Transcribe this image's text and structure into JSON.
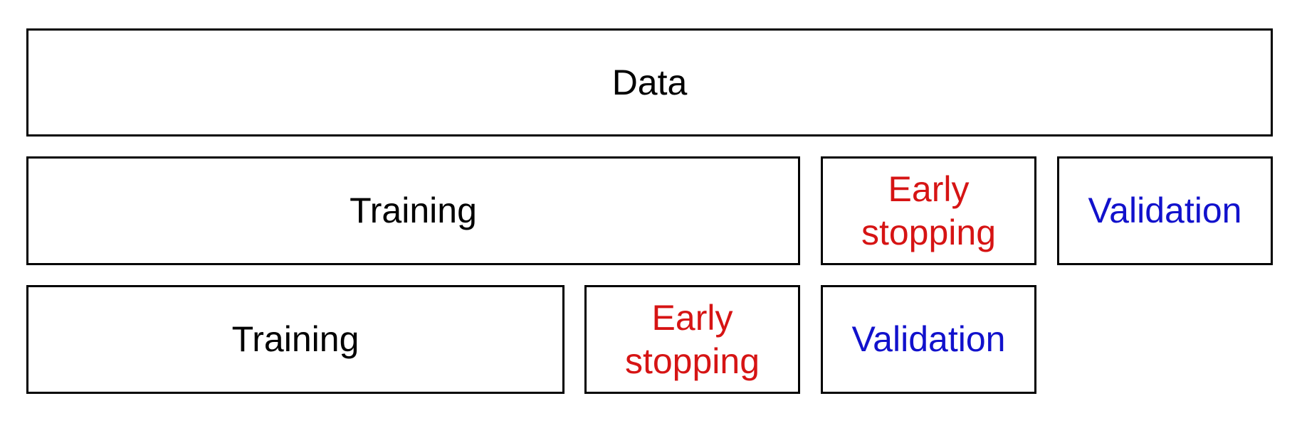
{
  "diagram": {
    "row1": {
      "data_label": "Data"
    },
    "row2": {
      "training_label": "Training",
      "early_stopping_label": "Early\nstopping",
      "validation_label": "Validation"
    },
    "row3": {
      "training_label": "Training",
      "early_stopping_label": "Early\nstopping",
      "validation_label": "Validation"
    }
  },
  "colors": {
    "border": "#000000",
    "training_text": "#000000",
    "early_stopping_text": "#d61414",
    "validation_text": "#1111cc"
  }
}
